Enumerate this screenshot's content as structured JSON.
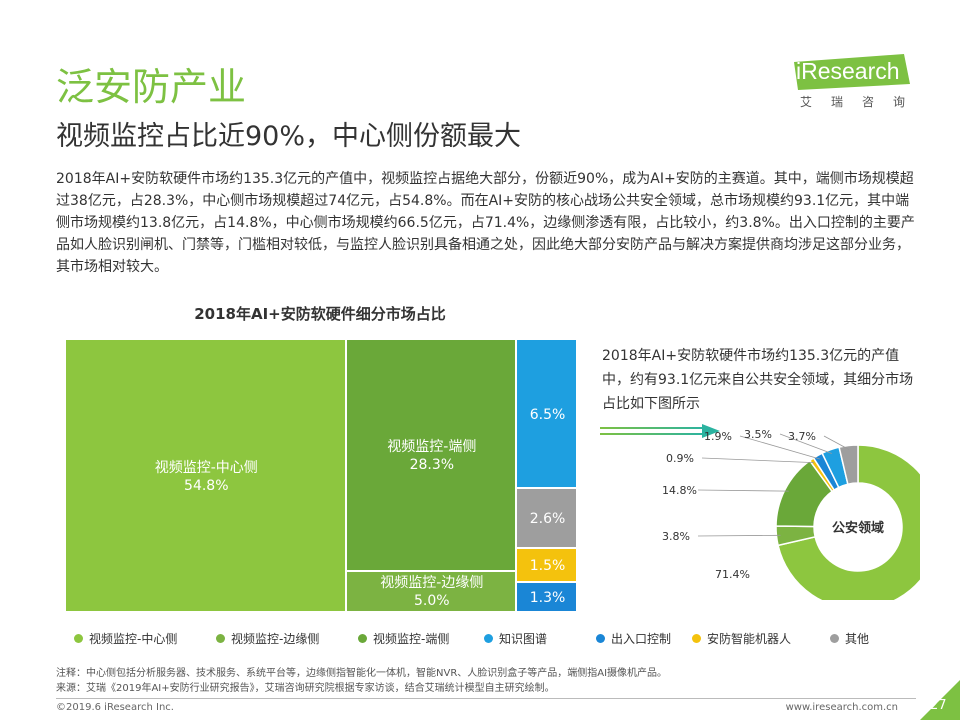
{
  "header": {
    "section_title": "泛安防产业",
    "headline": "视频监控占比近90%，中心侧份额最大"
  },
  "logo": {
    "name": "iResearch",
    "sub": "艾瑞咨询"
  },
  "intro": "2018年AI+安防软硬件市场约135.3亿元的产值中，视频监控占据绝大部分，份额近90%，成为AI+安防的主赛道。其中，端侧市场规模超过38亿元，占28.3%，中心侧市场规模超过74亿元，占54.8%。而在AI+安防的核心战场公共安全领域，总市场规模约93.1亿元，其中端侧市场规模约13.8亿元，占14.8%，中心侧市场规模约66.5亿元，占71.4%，边缘侧渗透有限，占比较小，约3.8%。出入口控制的主要产品如人脸识别闸机、门禁等，门槛相对较低，与监控人脸识别具备相通之处，因此绝大部分安防产品与解决方案提供商均涉足这部分业务，其市场相对较大。",
  "side_note": "2018年AI+安防软硬件市场约135.3亿元的产值中，约有93.1亿元来自公共安全领域，其细分市场占比如下图所示",
  "colors": {
    "accent": "#7dc142",
    "center": "#8dc63f",
    "edge": "#7cb342",
    "end": "#6aa839",
    "knowledge": "#1e9fe0",
    "access": "#1a86d6",
    "robot": "#f4c20d",
    "other": "#9e9e9e"
  },
  "chart_data": [
    {
      "type": "treemap",
      "title": "2018年AI+安防软硬件细分市场占比",
      "unit": "%",
      "items": [
        {
          "key": "center",
          "name": "视频监控-中心侧",
          "value": 54.8
        },
        {
          "key": "end",
          "name": "视频监控-端侧",
          "value": 28.3
        },
        {
          "key": "edge",
          "name": "视频监控-边缘侧",
          "value": 5.0
        },
        {
          "key": "knowledge",
          "name": "知识图谱",
          "value": 6.5
        },
        {
          "key": "other",
          "name": "其他",
          "value": 2.6
        },
        {
          "key": "robot",
          "name": "安防智能机器人",
          "value": 1.5
        },
        {
          "key": "access",
          "name": "出入口控制",
          "value": 1.3
        }
      ],
      "legend_position": "bottom"
    },
    {
      "type": "pie",
      "title": "",
      "center_label": "公安领域",
      "unit": "%",
      "slices": [
        {
          "key": "center",
          "value": 71.4
        },
        {
          "key": "edge",
          "value": 3.8
        },
        {
          "key": "end",
          "value": 14.8
        },
        {
          "key": "robot",
          "value": 0.9
        },
        {
          "key": "access",
          "value": 1.9
        },
        {
          "key": "knowledge",
          "value": 3.5
        },
        {
          "key": "other",
          "value": 3.7
        }
      ]
    }
  ],
  "legend": [
    {
      "key": "center",
      "label": "视频监控-中心侧"
    },
    {
      "key": "edge",
      "label": "视频监控-边缘侧"
    },
    {
      "key": "end",
      "label": "视频监控-端侧"
    },
    {
      "key": "knowledge",
      "label": "知识图谱"
    },
    {
      "key": "access",
      "label": "出入口控制"
    },
    {
      "key": "robot",
      "label": "安防智能机器人"
    },
    {
      "key": "other",
      "label": "其他"
    }
  ],
  "footer": {
    "note": "注释：中心侧包括分析服务器、技术服务、系统平台等，边缘侧指智能化一体机，智能NVR、人脸识别盒子等产品，端侧指AI摄像机产品。",
    "source": "来源：艾瑞《2019年AI+安防行业研究报告》，艾瑞咨询研究院根据专家访谈，结合艾瑞统计模型自主研究绘制。",
    "copyright": "©2019.6 iResearch Inc.",
    "website": "www.iresearch.com.cn",
    "page": "27"
  }
}
